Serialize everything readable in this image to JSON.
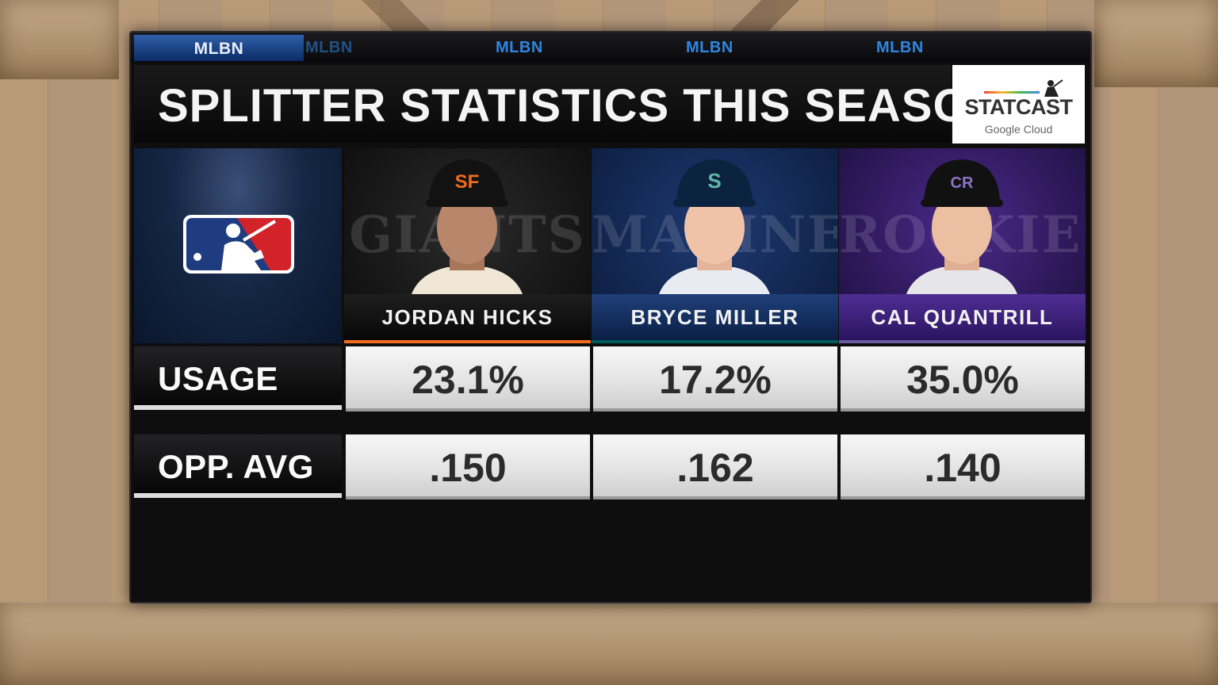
{
  "ticker": {
    "active_label": "MLBN",
    "marks": [
      "MLBN",
      "MLBN",
      "MLBN",
      "MLBN"
    ]
  },
  "header": {
    "title": "SPLITTER STATISTICS THIS SEASON",
    "sponsor_word": "STATCAST",
    "sponsor_sub": "Google Cloud"
  },
  "colors": {
    "giants": "#f26b1d",
    "mariners": "#005c5c",
    "rockies": "#4b2a8a",
    "mlb_blue": "#1f3c80",
    "mlb_red": "#d2232a"
  },
  "players": [
    {
      "name": "JORDAN HICKS",
      "team_wordmark": "GIANTS",
      "cap_logo": "SF",
      "usage": "23.1%",
      "opp_avg": ".150"
    },
    {
      "name": "BRYCE MILLER",
      "team_wordmark": "MARINERS",
      "cap_logo": "S",
      "usage": "17.2%",
      "opp_avg": ".162"
    },
    {
      "name": "CAL QUANTRILL",
      "team_wordmark": "ROCKIES",
      "cap_logo": "CR",
      "usage": "35.0%",
      "opp_avg": ".140"
    }
  ],
  "rows": {
    "usage_label": "USAGE",
    "opp_avg_label": "OPP. AVG"
  }
}
